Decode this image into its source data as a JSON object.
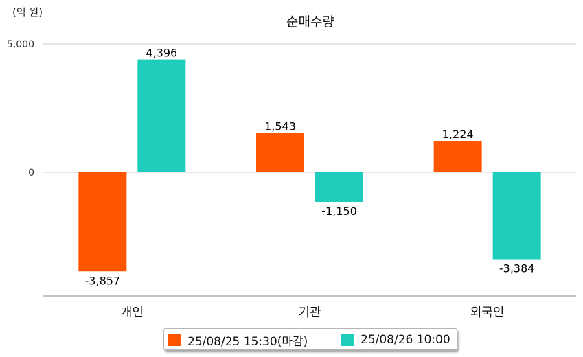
{
  "unit_label": "(억 원)",
  "chart_data": {
    "type": "bar",
    "title": "순매수량",
    "ylabel": "(억 원)",
    "xlabel": "",
    "categories": [
      "개인",
      "기관",
      "외국인"
    ],
    "series": [
      {
        "name": "25/08/25 15:30(마감)",
        "color": "#ff5500",
        "values": [
          -3857,
          1543,
          1224
        ],
        "labels": [
          "-3,857",
          "1,543",
          "1,224"
        ]
      },
      {
        "name": "25/08/26 10:00",
        "color": "#1ecdbb",
        "values": [
          4396,
          -1150,
          -3384
        ],
        "labels": [
          "4,396",
          "-1,150",
          "-3,384"
        ]
      }
    ],
    "yticks": [
      0,
      5000
    ],
    "ytick_labels": [
      "0",
      "5,000"
    ],
    "ylim": [
      -4800,
      5000
    ],
    "grid": true,
    "legend": "bottom"
  }
}
